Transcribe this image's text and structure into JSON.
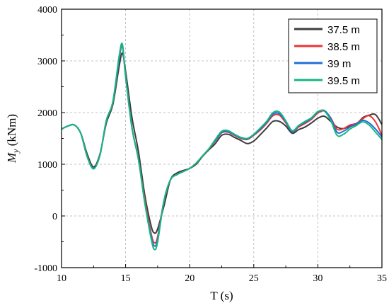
{
  "chart_data": {
    "type": "line",
    "title": "",
    "xlabel": "T (s)",
    "ylabel_symbol": "M",
    "ylabel_sub": "y",
    "ylabel_unit": " (kNm)",
    "xlim": [
      10,
      35
    ],
    "ylim": [
      -1000,
      4000
    ],
    "xticks": [
      "10",
      "15",
      "20",
      "25",
      "30",
      "35"
    ],
    "yticks": [
      "-1000",
      "0",
      "1000",
      "2000",
      "3000",
      "4000"
    ],
    "grid": true,
    "legend_position": "top-right",
    "series": [
      {
        "name": "37.5 m",
        "color": "#3d3d3d",
        "points": [
          [
            10,
            1680
          ],
          [
            10.5,
            1740
          ],
          [
            11,
            1760
          ],
          [
            11.5,
            1600
          ],
          [
            12,
            1200
          ],
          [
            12.5,
            950
          ],
          [
            13,
            1200
          ],
          [
            13.5,
            1800
          ],
          [
            14,
            2150
          ],
          [
            14.5,
            2900
          ],
          [
            14.75,
            3150
          ],
          [
            15,
            2800
          ],
          [
            15.5,
            1900
          ],
          [
            16,
            1250
          ],
          [
            16.5,
            400
          ],
          [
            17,
            -200
          ],
          [
            17.25,
            -330
          ],
          [
            17.5,
            -250
          ],
          [
            18,
            200
          ],
          [
            18.5,
            700
          ],
          [
            19,
            830
          ],
          [
            19.5,
            880
          ],
          [
            20,
            920
          ],
          [
            20.5,
            1000
          ],
          [
            21,
            1150
          ],
          [
            21.5,
            1280
          ],
          [
            22,
            1400
          ],
          [
            22.5,
            1560
          ],
          [
            23,
            1580
          ],
          [
            23.5,
            1520
          ],
          [
            24,
            1460
          ],
          [
            24.5,
            1400
          ],
          [
            25,
            1450
          ],
          [
            25.5,
            1570
          ],
          [
            26,
            1700
          ],
          [
            26.5,
            1830
          ],
          [
            27,
            1830
          ],
          [
            27.5,
            1740
          ],
          [
            28,
            1600
          ],
          [
            28.5,
            1670
          ],
          [
            29,
            1720
          ],
          [
            29.5,
            1800
          ],
          [
            30,
            1890
          ],
          [
            30.5,
            1930
          ],
          [
            31,
            1830
          ],
          [
            31.5,
            1720
          ],
          [
            32,
            1690
          ],
          [
            32.5,
            1740
          ],
          [
            33,
            1770
          ],
          [
            33.5,
            1900
          ],
          [
            34,
            1950
          ],
          [
            34.5,
            1960
          ],
          [
            35,
            1770
          ]
        ]
      },
      {
        "name": "38.5 m",
        "color": "#ee3333",
        "points": [
          [
            10,
            1680
          ],
          [
            10.5,
            1740
          ],
          [
            11,
            1760
          ],
          [
            11.5,
            1600
          ],
          [
            12,
            1150
          ],
          [
            12.5,
            920
          ],
          [
            13,
            1180
          ],
          [
            13.5,
            1850
          ],
          [
            14,
            2200
          ],
          [
            14.5,
            3050
          ],
          [
            14.75,
            3280
          ],
          [
            15,
            2700
          ],
          [
            15.5,
            1700
          ],
          [
            16,
            1100
          ],
          [
            16.5,
            300
          ],
          [
            17,
            -350
          ],
          [
            17.25,
            -520
          ],
          [
            17.5,
            -400
          ],
          [
            18,
            300
          ],
          [
            18.5,
            700
          ],
          [
            19,
            800
          ],
          [
            19.5,
            860
          ],
          [
            20,
            920
          ],
          [
            20.5,
            1020
          ],
          [
            21,
            1160
          ],
          [
            21.5,
            1300
          ],
          [
            22,
            1450
          ],
          [
            22.5,
            1610
          ],
          [
            23,
            1620
          ],
          [
            23.5,
            1560
          ],
          [
            24,
            1500
          ],
          [
            24.5,
            1480
          ],
          [
            25,
            1560
          ],
          [
            25.5,
            1660
          ],
          [
            26,
            1790
          ],
          [
            26.5,
            1940
          ],
          [
            27,
            1950
          ],
          [
            27.5,
            1800
          ],
          [
            28,
            1630
          ],
          [
            28.5,
            1720
          ],
          [
            29,
            1790
          ],
          [
            29.5,
            1870
          ],
          [
            30,
            1990
          ],
          [
            30.5,
            2030
          ],
          [
            31,
            1900
          ],
          [
            31.5,
            1680
          ],
          [
            32,
            1690
          ],
          [
            32.5,
            1760
          ],
          [
            33,
            1790
          ],
          [
            33.5,
            1880
          ],
          [
            34,
            1940
          ],
          [
            34.5,
            1820
          ],
          [
            35,
            1560
          ]
        ]
      },
      {
        "name": "39 m",
        "color": "#1f6fd6",
        "points": [
          [
            10,
            1680
          ],
          [
            10.5,
            1740
          ],
          [
            11,
            1760
          ],
          [
            11.5,
            1600
          ],
          [
            12,
            1150
          ],
          [
            12.5,
            920
          ],
          [
            13,
            1180
          ],
          [
            13.5,
            1850
          ],
          [
            14,
            2200
          ],
          [
            14.5,
            3050
          ],
          [
            14.75,
            3300
          ],
          [
            15,
            2700
          ],
          [
            15.5,
            1700
          ],
          [
            16,
            1100
          ],
          [
            16.5,
            250
          ],
          [
            17,
            -400
          ],
          [
            17.25,
            -580
          ],
          [
            17.5,
            -450
          ],
          [
            18,
            300
          ],
          [
            18.5,
            700
          ],
          [
            19,
            800
          ],
          [
            19.5,
            860
          ],
          [
            20,
            920
          ],
          [
            20.5,
            1020
          ],
          [
            21,
            1160
          ],
          [
            21.5,
            1300
          ],
          [
            22,
            1460
          ],
          [
            22.5,
            1620
          ],
          [
            23,
            1630
          ],
          [
            23.5,
            1570
          ],
          [
            24,
            1510
          ],
          [
            24.5,
            1490
          ],
          [
            25,
            1570
          ],
          [
            25.5,
            1680
          ],
          [
            26,
            1810
          ],
          [
            26.5,
            1970
          ],
          [
            27,
            1980
          ],
          [
            27.5,
            1820
          ],
          [
            28,
            1630
          ],
          [
            28.5,
            1740
          ],
          [
            29,
            1810
          ],
          [
            29.5,
            1890
          ],
          [
            30,
            2010
          ],
          [
            30.5,
            2040
          ],
          [
            31,
            1890
          ],
          [
            31.5,
            1620
          ],
          [
            32,
            1640
          ],
          [
            32.5,
            1720
          ],
          [
            33,
            1780
          ],
          [
            33.5,
            1850
          ],
          [
            34,
            1800
          ],
          [
            34.5,
            1680
          ],
          [
            35,
            1530
          ]
        ]
      },
      {
        "name": "39.5 m",
        "color": "#17b682",
        "points": [
          [
            10,
            1680
          ],
          [
            10.5,
            1740
          ],
          [
            11,
            1760
          ],
          [
            11.5,
            1600
          ],
          [
            12,
            1150
          ],
          [
            12.5,
            910
          ],
          [
            13,
            1180
          ],
          [
            13.5,
            1850
          ],
          [
            14,
            2200
          ],
          [
            14.5,
            3100
          ],
          [
            14.75,
            3320
          ],
          [
            15,
            2700
          ],
          [
            15.5,
            1700
          ],
          [
            16,
            1100
          ],
          [
            16.5,
            250
          ],
          [
            17,
            -450
          ],
          [
            17.25,
            -650
          ],
          [
            17.5,
            -500
          ],
          [
            18,
            300
          ],
          [
            18.5,
            700
          ],
          [
            19,
            800
          ],
          [
            19.5,
            860
          ],
          [
            20,
            920
          ],
          [
            20.5,
            1020
          ],
          [
            21,
            1160
          ],
          [
            21.5,
            1300
          ],
          [
            22,
            1480
          ],
          [
            22.5,
            1640
          ],
          [
            23,
            1650
          ],
          [
            23.5,
            1580
          ],
          [
            24,
            1520
          ],
          [
            24.5,
            1500
          ],
          [
            25,
            1580
          ],
          [
            25.5,
            1700
          ],
          [
            26,
            1830
          ],
          [
            26.5,
            2000
          ],
          [
            27,
            2010
          ],
          [
            27.5,
            1840
          ],
          [
            28,
            1650
          ],
          [
            28.5,
            1750
          ],
          [
            29,
            1830
          ],
          [
            29.5,
            1900
          ],
          [
            30,
            2020
          ],
          [
            30.5,
            2030
          ],
          [
            31,
            1850
          ],
          [
            31.5,
            1560
          ],
          [
            32,
            1580
          ],
          [
            32.5,
            1680
          ],
          [
            33,
            1750
          ],
          [
            33.5,
            1820
          ],
          [
            34,
            1760
          ],
          [
            34.5,
            1620
          ],
          [
            35,
            1480
          ]
        ]
      }
    ]
  }
}
